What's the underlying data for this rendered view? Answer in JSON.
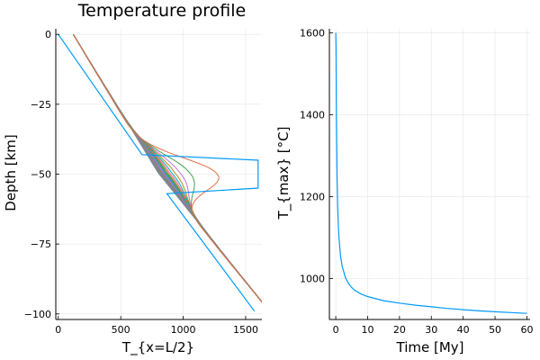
{
  "chart_data": [
    {
      "type": "line",
      "title": "Temperature profile",
      "xlabel": "T_{x=L/2}",
      "ylabel": "Depth [km]",
      "xlim": [
        -20,
        1630
      ],
      "ylim": [
        -102,
        2
      ],
      "xticks": [
        0,
        500,
        1000,
        1500
      ],
      "xtick_labels": [
        "0",
        "500",
        "1000",
        "1500"
      ],
      "yticks": [
        0,
        -25,
        -50,
        -75,
        -100
      ],
      "ytick_labels": [
        "0",
        "−25",
        "−50",
        "−75",
        "−100"
      ],
      "grid": true,
      "legend": "none",
      "colors": [
        "#009AFA",
        "#E36F47",
        "#3EA44E",
        "#C271D2",
        "#AC8D18",
        "#00A9AD",
        "#ED5E93",
        "#C68225",
        "#00A98D",
        "#8E971D",
        "#00A9CD",
        "#9B7FE9",
        "#618DF6",
        "#F5616F",
        "#DD64B5"
      ],
      "initial_profile": {
        "depth": [
          0,
          -43,
          -45,
          -55,
          -57,
          -99
        ],
        "T": [
          0,
          670,
          1600,
          1600,
          870,
          1570
        ]
      },
      "profile_model": {
        "count": 60,
        "T_surface": 0,
        "T_bottom": 1570,
        "depth_bottom": -99,
        "anomaly_center_depth": -50,
        "anomaly_halfwidth_km": 5
      }
    },
    {
      "type": "line",
      "title": "",
      "xlabel": "Time [My]",
      "ylabel": "T_{max} [°C]",
      "xlim": [
        -2,
        61
      ],
      "ylim": [
        900,
        1610
      ],
      "xticks": [
        0,
        10,
        20,
        30,
        40,
        50,
        60
      ],
      "xtick_labels": [
        "0",
        "10",
        "20",
        "30",
        "40",
        "50",
        "60"
      ],
      "yticks": [
        1000,
        1200,
        1400,
        1600
      ],
      "ytick_labels": [
        "1000",
        "1200",
        "1400",
        "1600"
      ],
      "grid": true,
      "legend": "none",
      "series_color": "#009AFA",
      "x": [
        0,
        0.1,
        0.2,
        0.4,
        0.6,
        0.8,
        1,
        1.5,
        2,
        3,
        4,
        5,
        6,
        8,
        10,
        15,
        20,
        25,
        30,
        35,
        40,
        45,
        50,
        55,
        60
      ],
      "y": [
        1600,
        1560,
        1400,
        1250,
        1175,
        1130,
        1100,
        1055,
        1030,
        1003,
        988,
        978,
        971,
        962,
        956,
        946,
        940,
        935,
        931,
        927,
        924,
        921,
        919,
        917,
        915
      ]
    }
  ]
}
